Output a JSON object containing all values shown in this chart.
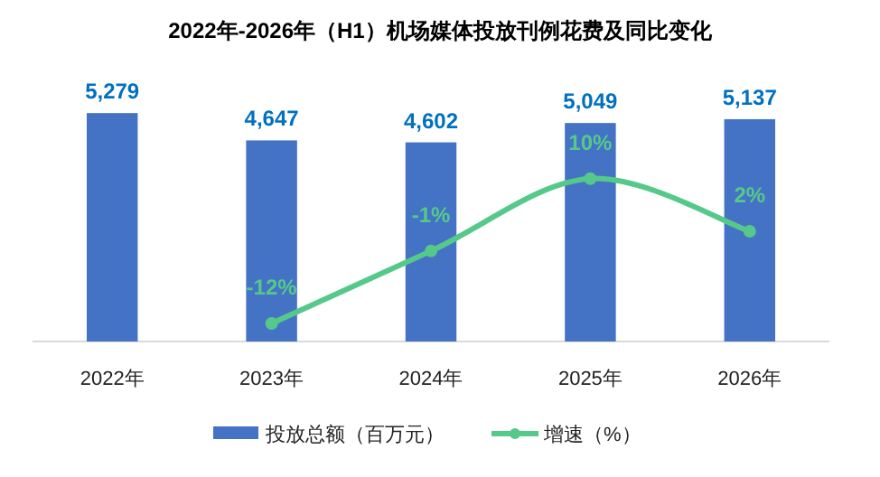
{
  "chart_data": {
    "type": "bar",
    "title": "2022年-2026年（H1）机场媒体投放刊例花费及同比变化",
    "categories": [
      "2022年",
      "2023年",
      "2024年",
      "2025年",
      "2026年"
    ],
    "series": [
      {
        "name": "投放总额（百万元）",
        "color": "#4472c4",
        "values": [
          5279,
          4647,
          4602,
          5049,
          5137
        ],
        "value_labels": [
          "5,279",
          "4,647",
          "4,602",
          "5,049",
          "5,137"
        ]
      },
      {
        "name": "增速（%）",
        "type": "line",
        "axis": "y2",
        "color": "#55c98a",
        "marker": "circle",
        "values": [
          null,
          -12,
          -1,
          10,
          2
        ],
        "value_labels": [
          null,
          "-12%",
          "-1%",
          "10%",
          "2%"
        ]
      }
    ],
    "tick_labels": "x",
    "legend": "bottom"
  }
}
